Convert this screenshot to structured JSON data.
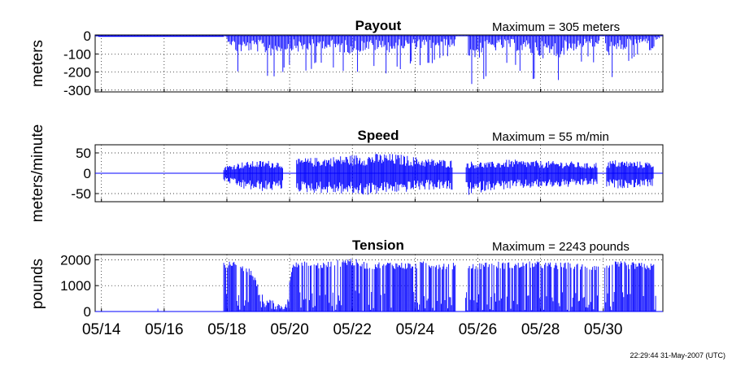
{
  "timestamp": "22:29:44 31-May-2007 (UTC)",
  "colors": {
    "series": "#0000ff",
    "axes": "#000000",
    "grid": "#000000",
    "background": "#ffffff"
  },
  "x_axis": {
    "ticks": [
      {
        "value": "05/14",
        "day": 14
      },
      {
        "value": "05/16",
        "day": 16
      },
      {
        "value": "05/18",
        "day": 18
      },
      {
        "value": "05/20",
        "day": 20
      },
      {
        "value": "05/22",
        "day": 22
      },
      {
        "value": "05/24",
        "day": 24
      },
      {
        "value": "05/26",
        "day": 26
      },
      {
        "value": "05/28",
        "day": 28
      },
      {
        "value": "05/30",
        "day": 30
      }
    ],
    "range_days": [
      13.8,
      31.9
    ]
  },
  "chart_data": [
    {
      "type": "line",
      "title": "Payout",
      "max_label": "Maximum = 305 meters",
      "ylabel": "meters",
      "ylim": [
        -310,
        5
      ],
      "yticks": [
        0,
        -100,
        -200,
        -300
      ],
      "ytick_labels": [
        "0",
        "-100",
        "-200",
        "-300"
      ],
      "grid": true,
      "series": [
        {
          "values": [
            [
              13.9,
              -3
            ],
            [
              15.0,
              -3
            ],
            [
              16.5,
              -3
            ],
            [
              17.9,
              -3
            ],
            [
              18.3,
              -215
            ],
            [
              18.9,
              -190
            ],
            [
              19.4,
              -250
            ],
            [
              20.0,
              -175
            ],
            [
              20.4,
              -220
            ],
            [
              21.0,
              -150
            ],
            [
              21.6,
              -210
            ],
            [
              22.0,
              -220
            ],
            [
              22.6,
              -180
            ],
            [
              23.2,
              -215
            ],
            [
              23.8,
              -160
            ],
            [
              24.4,
              -170
            ],
            [
              25.0,
              -120
            ],
            [
              25.9,
              -305
            ],
            [
              26.4,
              -200
            ],
            [
              27.0,
              -160
            ],
            [
              27.6,
              -230
            ],
            [
              28.4,
              -305
            ],
            [
              28.9,
              -210
            ],
            [
              29.5,
              -120
            ],
            [
              30.3,
              -265
            ],
            [
              30.9,
              -130
            ],
            [
              31.4,
              -95
            ],
            [
              31.8,
              -40
            ]
          ]
        }
      ]
    },
    {
      "type": "line",
      "title": "Speed",
      "max_label": "Maximum = 55 m/min",
      "ylabel": "meters/minute",
      "ylim": [
        -70,
        70
      ],
      "yticks": [
        50,
        0,
        -50
      ],
      "ytick_labels": [
        "50",
        "0",
        "-50"
      ],
      "grid": true,
      "series": [
        {
          "values": [
            [
              17.9,
              18
            ],
            [
              18.5,
              28
            ],
            [
              19.2,
              32
            ],
            [
              19.8,
              30
            ],
            [
              20.5,
              38
            ],
            [
              21.2,
              40
            ],
            [
              21.8,
              45
            ],
            [
              22.4,
              47
            ],
            [
              23.0,
              50
            ],
            [
              23.6,
              46
            ],
            [
              24.2,
              38
            ],
            [
              24.8,
              35
            ],
            [
              25.7,
              30
            ],
            [
              26.4,
              28
            ],
            [
              27.0,
              34
            ],
            [
              27.6,
              32
            ],
            [
              28.3,
              30
            ],
            [
              28.9,
              30
            ],
            [
              29.5,
              25
            ],
            [
              30.4,
              33
            ],
            [
              31.0,
              30
            ],
            [
              31.6,
              28
            ]
          ],
          "min_values": [
            [
              17.9,
              -20
            ],
            [
              18.5,
              -40
            ],
            [
              19.2,
              -45
            ],
            [
              19.8,
              -40
            ],
            [
              20.5,
              -48
            ],
            [
              21.2,
              -50
            ],
            [
              21.8,
              -52
            ],
            [
              22.4,
              -55
            ],
            [
              23.0,
              -50
            ],
            [
              23.6,
              -48
            ],
            [
              24.2,
              -42
            ],
            [
              24.8,
              -40
            ],
            [
              25.7,
              -55
            ],
            [
              26.4,
              -42
            ],
            [
              27.0,
              -40
            ],
            [
              27.6,
              -38
            ],
            [
              28.3,
              -35
            ],
            [
              28.9,
              -35
            ],
            [
              29.5,
              -30
            ],
            [
              30.4,
              -38
            ],
            [
              31.0,
              -35
            ],
            [
              31.6,
              -32
            ]
          ]
        }
      ]
    },
    {
      "type": "line",
      "title": "Tension",
      "max_label": "Maximum = 2243 pounds",
      "ylabel": "pounds",
      "ylim": [
        0,
        2200
      ],
      "yticks": [
        2000,
        1000,
        0
      ],
      "ytick_labels": [
        "2000",
        "1000",
        "0"
      ],
      "grid": true,
      "series": [
        {
          "values": [
            [
              13.9,
              0
            ],
            [
              15.5,
              0
            ],
            [
              15.8,
              110
            ],
            [
              17.8,
              0
            ],
            [
              17.9,
              2000
            ],
            [
              18.4,
              1900
            ],
            [
              18.8,
              1600
            ],
            [
              19.1,
              700
            ],
            [
              19.5,
              400
            ],
            [
              19.9,
              300
            ],
            [
              20.1,
              2050
            ],
            [
              20.6,
              1900
            ],
            [
              21.3,
              1950
            ],
            [
              21.9,
              2100
            ],
            [
              22.5,
              1900
            ],
            [
              23.1,
              1950
            ],
            [
              23.7,
              1900
            ],
            [
              24.4,
              1950
            ],
            [
              25.0,
              1900
            ],
            [
              25.8,
              1900
            ],
            [
              26.5,
              1950
            ],
            [
              27.2,
              1900
            ],
            [
              27.8,
              1950
            ],
            [
              28.4,
              1900
            ],
            [
              29.0,
              1900
            ],
            [
              29.6,
              1850
            ],
            [
              30.5,
              1950
            ],
            [
              31.1,
              1900
            ],
            [
              31.7,
              1850
            ]
          ]
        }
      ]
    }
  ]
}
